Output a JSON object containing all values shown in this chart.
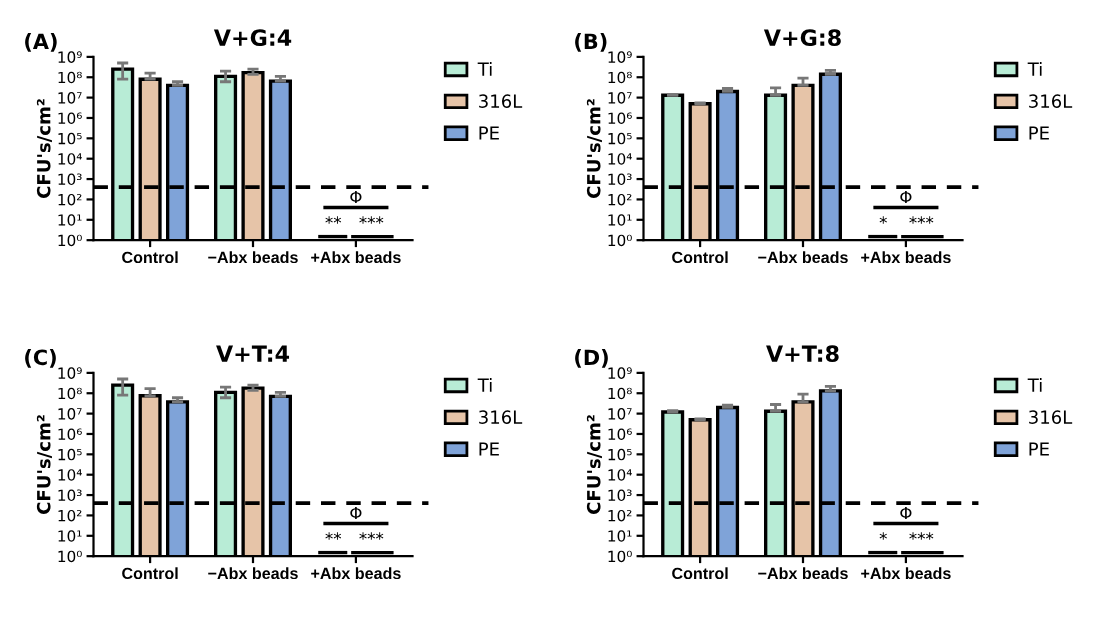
{
  "chart_data": [
    {
      "type": "bar",
      "title": "V+G:4",
      "ylabel": "CFU's/cm²",
      "categories": [
        "Control",
        "−Abx beads",
        "+Abx beads"
      ],
      "log": true,
      "ylim": [
        1,
        1000000000
      ],
      "yticks": [
        {
          "value": 1,
          "label": "10⁰"
        },
        {
          "value": 10,
          "label": "10¹"
        },
        {
          "value": 100,
          "label": "10²"
        },
        {
          "value": 1000,
          "label": "10³"
        },
        {
          "value": 10000,
          "label": "10⁴"
        },
        {
          "value": 100000,
          "label": "10⁵"
        },
        {
          "value": 1000000,
          "label": "10⁶"
        },
        {
          "value": 10000000,
          "label": "10⁷"
        },
        {
          "value": 100000000,
          "label": "10⁸"
        },
        {
          "value": 1000000000,
          "label": "10⁹"
        }
      ],
      "legend": "right",
      "grid": false,
      "series": [
        {
          "name": "Ti",
          "color": "#b8ecd6",
          "values": [
            250000000,
            110000000,
            null
          ],
          "errors": [
            [
              80000000,
              500000000
            ],
            [
              60000000,
              200000000
            ],
            null
          ]
        },
        {
          "name": "316L",
          "color": "#e6c4a8",
          "values": [
            80000000,
            170000000,
            null
          ],
          "errors": [
            [
              80000000,
              160000000
            ],
            [
              140000000,
              250000000
            ],
            null
          ]
        },
        {
          "name": "PE",
          "color": "#7fa3d8",
          "values": [
            40000000,
            65000000,
            null
          ],
          "errors": [
            [
              40000000,
              60000000
            ],
            [
              65000000,
              110000000
            ],
            null
          ]
        }
      ],
      "ref_lines": [
        {
          "axis": "y",
          "value": 400,
          "line_style": "dashed",
          "color": "#000000"
        }
      ],
      "annotations": [
        "(A)",
        "Φ",
        "**",
        "***"
      ]
    },
    {
      "type": "bar",
      "title": "V+G:8",
      "ylabel": "CFU's/cm²",
      "categories": [
        "Control",
        "−Abx beads",
        "+Abx beads"
      ],
      "log": true,
      "ylim": [
        1,
        1000000000
      ],
      "yticks": [
        {
          "value": 1,
          "label": "10⁰"
        },
        {
          "value": 10,
          "label": "10¹"
        },
        {
          "value": 100,
          "label": "10²"
        },
        {
          "value": 1000,
          "label": "10³"
        },
        {
          "value": 10000,
          "label": "10⁴"
        },
        {
          "value": 100000,
          "label": "10⁵"
        },
        {
          "value": 1000000,
          "label": "10⁶"
        },
        {
          "value": 10000000,
          "label": "10⁷"
        },
        {
          "value": 100000000,
          "label": "10⁸"
        },
        {
          "value": 1000000000,
          "label": "10⁹"
        }
      ],
      "legend": "right",
      "grid": false,
      "series": [
        {
          "name": "Ti",
          "color": "#b8ecd6",
          "values": [
            13000000,
            13000000,
            null
          ],
          "errors": [
            [
              13000000,
              14000000
            ],
            [
              13000000,
              30000000
            ],
            null
          ]
        },
        {
          "name": "316L",
          "color": "#e6c4a8",
          "values": [
            5000000,
            40000000,
            null
          ],
          "errors": [
            [
              5000000,
              5500000
            ],
            [
              40000000,
              90000000
            ],
            null
          ]
        },
        {
          "name": "PE",
          "color": "#7fa3d8",
          "values": [
            20000000,
            140000000,
            null
          ],
          "errors": [
            [
              20000000,
              28000000
            ],
            [
              140000000,
              220000000
            ],
            null
          ]
        }
      ],
      "ref_lines": [
        {
          "axis": "y",
          "value": 400,
          "line_style": "dashed",
          "color": "#000000"
        }
      ],
      "annotations": [
        "(B)",
        "Φ",
        "*",
        "***"
      ]
    },
    {
      "type": "bar",
      "title": "V+T:4",
      "ylabel": "CFU's/cm²",
      "categories": [
        "Control",
        "−Abx beads",
        "+Abx beads"
      ],
      "log": true,
      "ylim": [
        1,
        1000000000
      ],
      "yticks": [
        {
          "value": 1,
          "label": "10⁰"
        },
        {
          "value": 10,
          "label": "10¹"
        },
        {
          "value": 100,
          "label": "10²"
        },
        {
          "value": 1000,
          "label": "10³"
        },
        {
          "value": 10000,
          "label": "10⁴"
        },
        {
          "value": 100000,
          "label": "10⁵"
        },
        {
          "value": 1000000,
          "label": "10⁶"
        },
        {
          "value": 10000000,
          "label": "10⁷"
        },
        {
          "value": 100000000,
          "label": "10⁸"
        },
        {
          "value": 1000000000,
          "label": "10⁹"
        }
      ],
      "legend": "right",
      "grid": false,
      "series": [
        {
          "name": "Ti",
          "color": "#b8ecd6",
          "values": [
            250000000,
            110000000,
            null
          ],
          "errors": [
            [
              80000000,
              500000000
            ],
            [
              60000000,
              200000000
            ],
            null
          ]
        },
        {
          "name": "316L",
          "color": "#e6c4a8",
          "values": [
            75000000,
            180000000,
            null
          ],
          "errors": [
            [
              75000000,
              170000000
            ],
            [
              140000000,
              250000000
            ],
            null
          ]
        },
        {
          "name": "PE",
          "color": "#7fa3d8",
          "values": [
            38000000,
            70000000,
            null
          ],
          "errors": [
            [
              38000000,
              60000000
            ],
            [
              70000000,
              110000000
            ],
            null
          ]
        }
      ],
      "ref_lines": [
        {
          "axis": "y",
          "value": 400,
          "line_style": "dashed",
          "color": "#000000"
        }
      ],
      "annotations": [
        "(C)",
        "Φ",
        "**",
        "***"
      ]
    },
    {
      "type": "bar",
      "title": "V+T:8",
      "ylabel": "CFU's/cm²",
      "categories": [
        "Control",
        "−Abx beads",
        "+Abx beads"
      ],
      "log": true,
      "ylim": [
        1,
        1000000000
      ],
      "yticks": [
        {
          "value": 1,
          "label": "10⁰"
        },
        {
          "value": 10,
          "label": "10¹"
        },
        {
          "value": 100,
          "label": "10²"
        },
        {
          "value": 1000,
          "label": "10³"
        },
        {
          "value": 10000,
          "label": "10⁴"
        },
        {
          "value": 100000,
          "label": "10⁵"
        },
        {
          "value": 1000000,
          "label": "10⁶"
        },
        {
          "value": 10000000,
          "label": "10⁷"
        },
        {
          "value": 100000000,
          "label": "10⁸"
        },
        {
          "value": 1000000000,
          "label": "10⁹"
        }
      ],
      "legend": "right",
      "grid": false,
      "series": [
        {
          "name": "Ti",
          "color": "#b8ecd6",
          "values": [
            12000000,
            13000000,
            null
          ],
          "errors": [
            [
              12000000,
              14000000
            ],
            [
              13000000,
              28000000
            ],
            null
          ]
        },
        {
          "name": "316L",
          "color": "#e6c4a8",
          "values": [
            5000000,
            38000000,
            null
          ],
          "errors": [
            [
              5000000,
              5500000
            ],
            [
              38000000,
              90000000
            ],
            null
          ]
        },
        {
          "name": "PE",
          "color": "#7fa3d8",
          "values": [
            20000000,
            130000000,
            null
          ],
          "errors": [
            [
              20000000,
              26000000
            ],
            [
              130000000,
              220000000
            ],
            null
          ]
        }
      ],
      "ref_lines": [
        {
          "axis": "y",
          "value": 400,
          "line_style": "dashed",
          "color": "#000000"
        }
      ],
      "annotations": [
        "(D)",
        "Φ",
        "*",
        "***"
      ]
    }
  ]
}
